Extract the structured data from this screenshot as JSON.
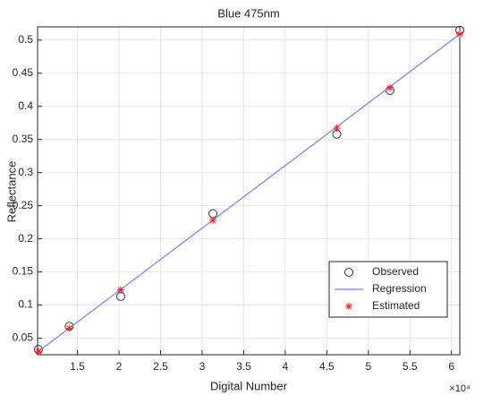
{
  "chart_data": {
    "type": "scatter",
    "title": "Blue 475nm",
    "x_label": "Digital Number",
    "y_label": "Reflectance",
    "x_exponent_label": "×10⁴",
    "xlim": [
      1.02,
      6.1
    ],
    "ylim": [
      0.025,
      0.52
    ],
    "xticks": [
      1.5,
      2,
      2.5,
      3,
      3.5,
      4,
      4.5,
      5,
      5.5,
      6
    ],
    "yticks": [
      0.05,
      0.1,
      0.15,
      0.2,
      0.25,
      0.3,
      0.35,
      0.4,
      0.45,
      0.5
    ],
    "grid": true,
    "legend": "lower-right",
    "series": [
      {
        "name": "Observed",
        "marker": "circle",
        "color": "#333333",
        "x": [
          1.03,
          1.4,
          2.02,
          3.13,
          4.62,
          5.26,
          6.1
        ],
        "values": [
          0.033,
          0.068,
          0.113,
          0.238,
          0.358,
          0.424,
          0.515
        ]
      },
      {
        "name": "Regression",
        "marker": "line",
        "color": "#7b7bff",
        "x": [
          1.03,
          6.1
        ],
        "values": [
          0.03,
          0.509
        ]
      },
      {
        "name": "Estimated",
        "marker": "asterisk",
        "color": "#ff2020",
        "x": [
          1.03,
          1.4,
          2.02,
          3.13,
          4.62,
          5.26,
          6.1
        ],
        "values": [
          0.03,
          0.065,
          0.123,
          0.228,
          0.367,
          0.428,
          0.509
        ]
      }
    ]
  }
}
